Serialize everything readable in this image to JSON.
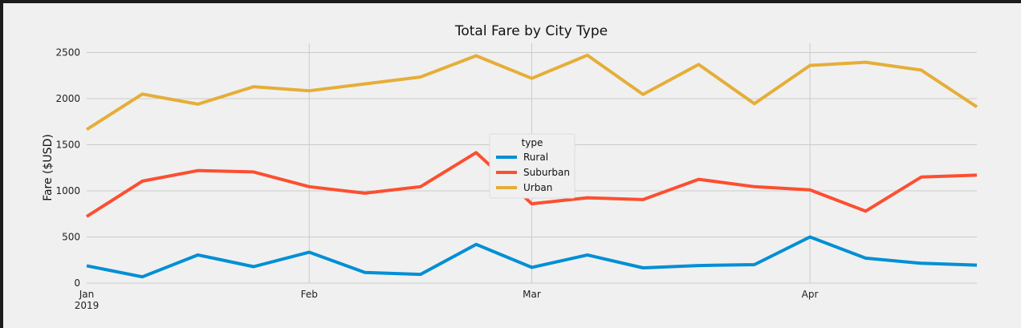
{
  "chart_data": {
    "type": "line",
    "title": "Total Fare by City Type",
    "xlabel": "",
    "ylabel": "Fare ($USD)",
    "x": [
      "2019-01-06",
      "2019-01-13",
      "2019-01-20",
      "2019-01-27",
      "2019-02-03",
      "2019-02-10",
      "2019-02-17",
      "2019-02-24",
      "2019-03-03",
      "2019-03-10",
      "2019-03-17",
      "2019-03-24",
      "2019-03-31",
      "2019-04-07",
      "2019-04-14",
      "2019-04-21",
      "2019-04-28"
    ],
    "xlim": [
      "2019-01-06",
      "2019-04-28"
    ],
    "ylim": [
      0,
      2600
    ],
    "x_ticks": [
      {
        "date": "2019-01-06",
        "label": "Jan",
        "sublabel": "2019",
        "grid": false
      },
      {
        "date": "2019-02-03",
        "label": "Feb",
        "sublabel": "",
        "grid": true
      },
      {
        "date": "2019-03-03",
        "label": "Mar",
        "sublabel": "",
        "grid": true
      },
      {
        "date": "2019-04-07",
        "label": "Apr",
        "sublabel": "",
        "grid": true
      }
    ],
    "y_ticks": [
      0,
      500,
      1000,
      1500,
      2000,
      2500
    ],
    "grid": true,
    "legend": {
      "title": "type",
      "placement": "center"
    },
    "series": [
      {
        "name": "Rural",
        "color": "#008fd5",
        "values": [
          188,
          68,
          305,
          178,
          335,
          115,
          95,
          420,
          170,
          305,
          165,
          190,
          200,
          500,
          270,
          215,
          195
        ]
      },
      {
        "name": "Suburban",
        "color": "#fc4f30",
        "values": [
          722,
          1105,
          1220,
          1205,
          1045,
          975,
          1045,
          1415,
          860,
          925,
          905,
          1125,
          1045,
          1010,
          780,
          1150,
          1170
        ]
      },
      {
        "name": "Urban",
        "color": "#e5ae38",
        "values": [
          1665,
          2050,
          1940,
          2130,
          2085,
          2160,
          2235,
          2465,
          2220,
          2470,
          2045,
          2370,
          1945,
          2360,
          2395,
          2310,
          1910
        ]
      }
    ]
  }
}
